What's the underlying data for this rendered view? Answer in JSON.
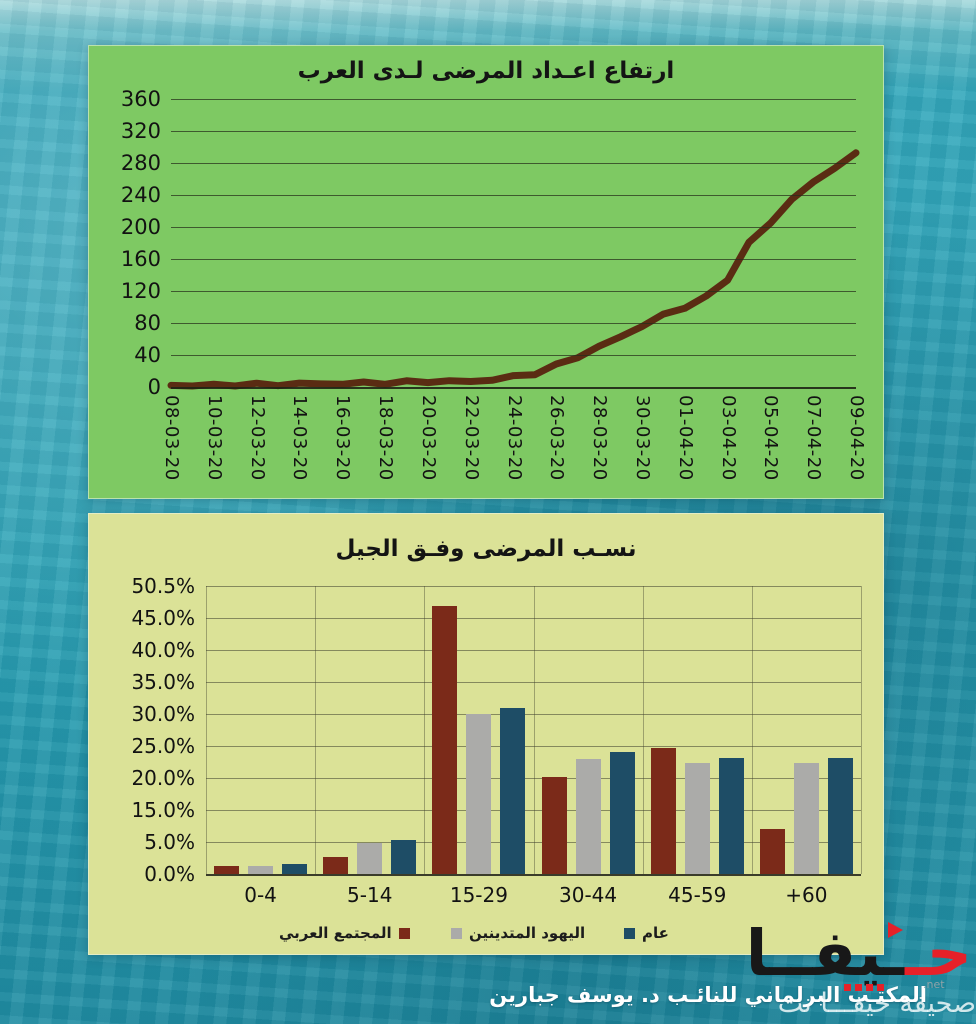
{
  "background": {
    "base_color": "#2aa0b3"
  },
  "chart_data": [
    {
      "type": "line",
      "title": "ارتفاع اعـداد المرضى لـدى العرب",
      "panel_color": "#7ec963",
      "line_color": "#5a2c13",
      "ylim": [
        0,
        360
      ],
      "y_tick_labels": [
        "360",
        "320",
        "280",
        "240",
        "200",
        "160",
        "120",
        "80",
        "40",
        "0"
      ],
      "grid": "horizontal",
      "x": [
        "08-03-20",
        "09-03-20",
        "10-03-20",
        "11-03-20",
        "12-03-20",
        "13-03-20",
        "14-03-20",
        "15-03-20",
        "16-03-20",
        "17-03-20",
        "18-03-20",
        "19-03-20",
        "20-03-20",
        "21-03-20",
        "22-03-20",
        "23-03-20",
        "24-03-20",
        "25-03-20",
        "26-03-20",
        "27-03-20",
        "28-03-20",
        "29-03-20",
        "30-03-20",
        "31-03-20",
        "01-04-20",
        "02-04-20",
        "03-04-20",
        "04-04-20",
        "05-04-20",
        "06-04-20",
        "07-04-20",
        "08-04-20",
        "09-04-20"
      ],
      "values": [
        2,
        2,
        2,
        3,
        3,
        3,
        4,
        4,
        4,
        5,
        5,
        6,
        7,
        7,
        7,
        9,
        13,
        17,
        27,
        38,
        50,
        63,
        76,
        90,
        100,
        112,
        135,
        180,
        205,
        235,
        255,
        275,
        291
      ],
      "x_tick_labels": [
        "08-03-20",
        "10-03-20",
        "12-03-20",
        "14-03-20",
        "16-03-20",
        "18-03-20",
        "20-03-20",
        "22-03-20",
        "24-03-20",
        "26-03-20",
        "28-03-20",
        "30-03-20",
        "01-04-20",
        "03-04-20",
        "05-04-20",
        "07-04-20",
        "09-04-20"
      ]
    },
    {
      "type": "bar",
      "title": "نسـب المرضى وفـق الجيل",
      "panel_color": "#dbe297",
      "categories": [
        "0-4",
        "5-14",
        "15-29",
        "30-44",
        "45-59",
        "+60"
      ],
      "series": [
        {
          "name": "المجتمع العربي",
          "color": "#7b2a19",
          "values": [
            1.3,
            2.7,
            47.0,
            20.2,
            24.7,
            9.0
          ]
        },
        {
          "name": "اليهود المتدينين",
          "color": "#ababa9",
          "values": [
            1.3,
            4.8,
            30.0,
            23.0,
            22.3,
            22.4
          ]
        },
        {
          "name": "عام",
          "color": "#1e4d66",
          "values": [
            1.6,
            5.5,
            31.0,
            24.0,
            23.2,
            23.2
          ]
        }
      ],
      "y_tick_labels_top_down": [
        "50.5%",
        "45.0%",
        "40.0%",
        "35.0%",
        "30.0%",
        "25.0%",
        "20.0%",
        "15.0%",
        "5.0%",
        "0.0%"
      ],
      "legend_position": "bottom",
      "grid": "both"
    }
  ],
  "footer": {
    "credit": "المكتـب البرلماني للنائـب د. يوسف جبارين"
  },
  "watermark": {
    "brand_red": "حـ",
    "brand_black": "ـيفــا",
    "brand_full": "حيفا",
    "net": ".net",
    "subtitle": "صحيفة حيفـــا نت"
  }
}
